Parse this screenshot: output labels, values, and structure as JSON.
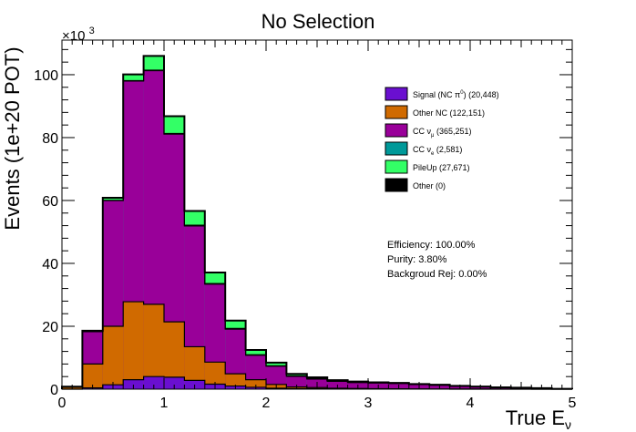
{
  "chart_data": {
    "type": "bar",
    "stacked": true,
    "title": "No Selection",
    "xlabel_main": "True E",
    "xlabel_sub": "ν",
    "ylabel": "Events (1e+20 POT)",
    "y_multiplier_base": "×10",
    "y_multiplier_exp": "3",
    "xlim": [
      0,
      5
    ],
    "ylim": [
      0,
      111000
    ],
    "xticks": [
      0,
      1,
      2,
      3,
      4,
      5
    ],
    "xtick_labels": [
      "0",
      "1",
      "2",
      "3",
      "4",
      "5"
    ],
    "yticks": [
      0,
      20000,
      40000,
      60000,
      80000,
      100000
    ],
    "ytick_labels": [
      "0",
      "20",
      "40",
      "60",
      "80",
      "100"
    ],
    "grid": false,
    "legend_position": "top-right",
    "bin_edges": [
      0,
      0.2,
      0.4,
      0.6,
      0.8,
      1.0,
      1.2,
      1.4,
      1.6,
      1.8,
      2.0,
      2.2,
      2.4,
      2.6,
      2.8,
      3.0,
      3.2,
      3.4,
      3.6,
      3.8,
      4.0,
      4.2,
      4.4,
      4.6,
      4.8,
      5.0
    ],
    "series": [
      {
        "name": "Signal (NC π⁰) (20,448)",
        "label_pre": "Signal (NC π",
        "label_sup": "0",
        "label_post": ") (20,448)",
        "color": "#6a0fd0",
        "values": [
          0,
          400,
          1400,
          3000,
          4000,
          3800,
          2800,
          1600,
          1000,
          600,
          300,
          200,
          100,
          80,
          60,
          40,
          30,
          20,
          20,
          10,
          10,
          10,
          5,
          5,
          0
        ]
      },
      {
        "name": "Other NC (122,151)",
        "label_pre": "Other NC (122,151)",
        "label_sup": "",
        "label_post": "",
        "color": "#d06a00",
        "values": [
          600,
          7600,
          18600,
          24800,
          23000,
          17600,
          10700,
          7000,
          3900,
          2400,
          1200,
          500,
          400,
          200,
          150,
          100,
          80,
          60,
          40,
          30,
          20,
          10,
          10,
          5,
          0
        ]
      },
      {
        "name": "CC νμ (365,251)",
        "label_pre": "CC ν",
        "label_sub": "μ",
        "label_sup": "",
        "label_post": " (365,251)",
        "color": "#990099",
        "values": [
          200,
          10300,
          40000,
          70200,
          74300,
          59700,
          38400,
          24800,
          14200,
          7800,
          5800,
          3400,
          2700,
          2200,
          1900,
          1800,
          1700,
          1400,
          1200,
          900,
          700,
          500,
          400,
          300,
          100
        ]
      },
      {
        "name": "CC νe (2,581)",
        "label_pre": "CC ν",
        "label_sub": "e",
        "label_sup": "",
        "label_post": " (2,581)",
        "color": "#009999",
        "values": [
          0,
          0,
          50,
          100,
          150,
          200,
          250,
          200,
          200,
          150,
          150,
          150,
          150,
          100,
          100,
          100,
          100,
          80,
          80,
          60,
          60,
          40,
          30,
          20,
          10
        ]
      },
      {
        "name": "PileUp (27,671)",
        "label_pre": "PileUp (27,671)",
        "label_sup": "",
        "label_post": "",
        "color": "#33ff66",
        "values": [
          0,
          300,
          800,
          2000,
          4500,
          5500,
          4500,
          3500,
          2500,
          1500,
          1000,
          600,
          400,
          300,
          200,
          150,
          100,
          80,
          60,
          40,
          30,
          20,
          10,
          10,
          0
        ]
      },
      {
        "name": "Other (0)",
        "label_pre": "Other (0)",
        "label_sup": "",
        "label_post": "",
        "color": "#000000",
        "values": [
          0,
          0,
          0,
          0,
          0,
          0,
          0,
          0,
          0,
          0,
          0,
          0,
          0,
          0,
          0,
          0,
          0,
          0,
          0,
          0,
          0,
          0,
          0,
          0,
          0
        ]
      }
    ],
    "annotations": {
      "efficiency": "Efficiency: 100.00%",
      "purity": "Purity: 3.80%",
      "bkg_rej": "Backgroud Rej: 0.00%"
    }
  }
}
